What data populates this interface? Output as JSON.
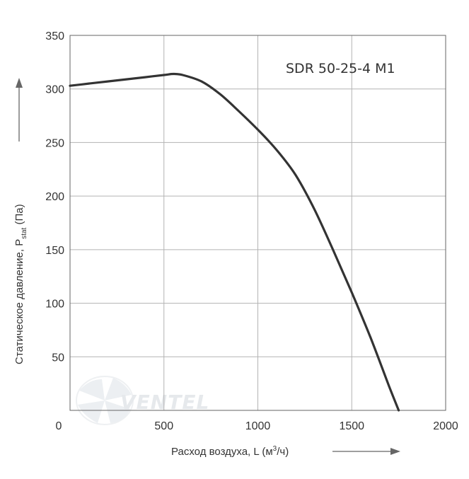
{
  "chart_data": {
    "type": "line",
    "title": "",
    "xlabel": {
      "text": "Расход воздуха, L (м",
      "sup": "3",
      "after": "/ч)"
    },
    "ylabel": {
      "text": "Статическое давление, P",
      "sub": "stat",
      "after": " (Па)"
    },
    "xlim": [
      0,
      2000
    ],
    "ylim": [
      0,
      350
    ],
    "xticks": [
      "0",
      "500",
      "1000",
      "1500",
      "2000"
    ],
    "yticks": [
      "50",
      "100",
      "150",
      "200",
      "250",
      "300",
      "350"
    ],
    "grid": true,
    "series": [
      {
        "name": "SDR 50-25-4 M1",
        "x": [
          0,
          100,
          200,
          300,
          400,
          500,
          550,
          600,
          700,
          800,
          900,
          1000,
          1100,
          1200,
          1300,
          1400,
          1500,
          1600,
          1700,
          1750
        ],
        "y": [
          303,
          305,
          307,
          309,
          311,
          313,
          314,
          313,
          307,
          295,
          279,
          262,
          243,
          220,
          188,
          150,
          110,
          68,
          22,
          0
        ]
      }
    ],
    "colors": {
      "line": "#333333",
      "grid": "#b3b3b3",
      "frame": "#666666",
      "axis_text": "#333333"
    }
  },
  "watermark": {
    "text": "VENTEL"
  }
}
